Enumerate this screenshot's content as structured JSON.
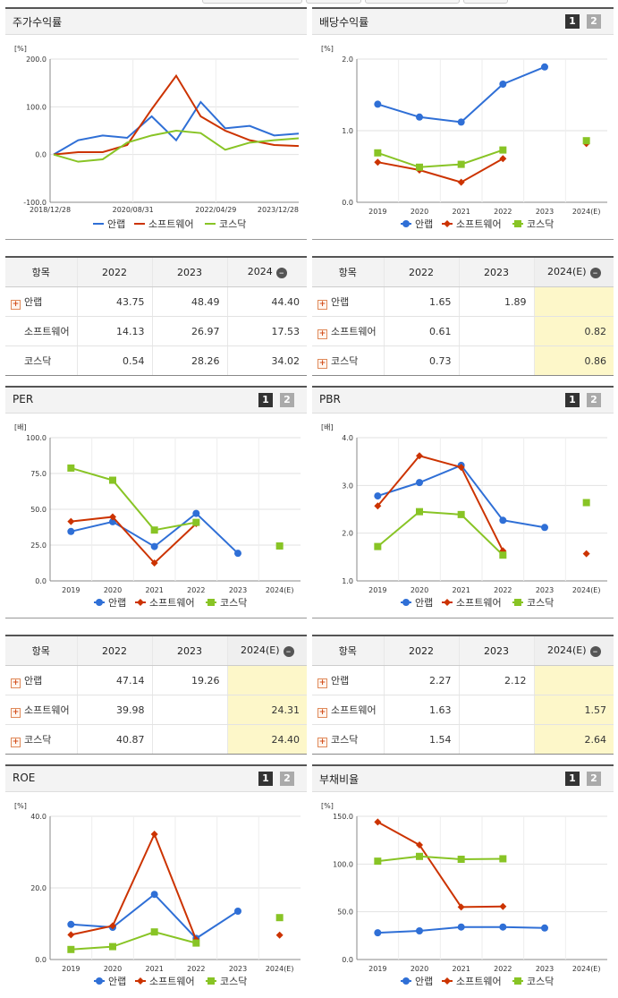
{
  "colors": {
    "ahnlab": "#2f6fd6",
    "software": "#cc3300",
    "kosdaq": "#88c425"
  },
  "toggle": {
    "one": "1",
    "two": "2"
  },
  "legend": [
    "안랩",
    "소프트웨어",
    "코스닥"
  ],
  "stock_panel": {
    "title": "주가수익률",
    "unit": "[%]"
  },
  "dividend_panel": {
    "title": "배당수익률",
    "unit": "[%]"
  },
  "per_panel": {
    "title": "PER",
    "unit": "[배]"
  },
  "pbr_panel": {
    "title": "PBR",
    "unit": "[배]"
  },
  "roe_panel": {
    "title": "ROE",
    "unit": "[%]"
  },
  "debt_panel": {
    "title": "부채비율",
    "unit": "[%]"
  },
  "chart_data": [
    {
      "id": "stock",
      "type": "line",
      "title": "주가수익률",
      "ylabel": "[%]",
      "ylim": [
        -100,
        200
      ],
      "yticks": [
        "-100.0",
        "0.0",
        "100.0",
        "200.0"
      ],
      "xticks": [
        "2018/12/28",
        "2020/08/31",
        "2022/04/29",
        "2023/12/28"
      ],
      "x": [
        "2018/12",
        "2019/06",
        "2019/12",
        "2020/06",
        "2020/12",
        "2021/06",
        "2021/12",
        "2022/06",
        "2022/12",
        "2023/06",
        "2023/12"
      ],
      "series": [
        {
          "name": "안랩",
          "values": [
            0,
            30,
            40,
            35,
            80,
            30,
            110,
            55,
            60,
            40,
            44
          ]
        },
        {
          "name": "소프트웨어",
          "values": [
            0,
            5,
            5,
            20,
            95,
            165,
            80,
            50,
            30,
            20,
            18
          ]
        },
        {
          "name": "코스닥",
          "values": [
            0,
            -15,
            -10,
            25,
            40,
            50,
            45,
            10,
            25,
            30,
            34
          ]
        }
      ]
    },
    {
      "id": "dividend",
      "type": "line",
      "title": "배당수익률",
      "ylabel": "[%]",
      "ylim": [
        0,
        2
      ],
      "yticks": [
        "0.0",
        "1.0",
        "2.0"
      ],
      "categories": [
        "2019",
        "2020",
        "2021",
        "2022",
        "2023",
        "2024(E)"
      ],
      "series": [
        {
          "name": "안랩",
          "values": [
            1.37,
            1.19,
            1.12,
            1.65,
            1.89,
            null
          ]
        },
        {
          "name": "소프트웨어",
          "values": [
            0.56,
            0.45,
            0.28,
            0.61,
            null,
            0.82
          ]
        },
        {
          "name": "코스닥",
          "values": [
            0.69,
            0.49,
            0.53,
            0.73,
            null,
            0.86
          ]
        }
      ]
    },
    {
      "id": "per",
      "type": "line",
      "title": "PER",
      "ylabel": "[배]",
      "ylim": [
        0,
        100
      ],
      "yticks": [
        "0.0",
        "25.0",
        "50.0",
        "75.0",
        "100.0"
      ],
      "categories": [
        "2019",
        "2020",
        "2021",
        "2022",
        "2023",
        "2024(E)"
      ],
      "series": [
        {
          "name": "안랩",
          "values": [
            34.5,
            41.3,
            24,
            47.14,
            19.26,
            null
          ]
        },
        {
          "name": "소프트웨어",
          "values": [
            41.5,
            44.7,
            12.5,
            39.98,
            null,
            24.31
          ]
        },
        {
          "name": "코스닥",
          "values": [
            78.8,
            70.3,
            35.5,
            40.87,
            null,
            24.4
          ]
        }
      ]
    },
    {
      "id": "pbr",
      "type": "line",
      "title": "PBR",
      "ylabel": "[배]",
      "ylim": [
        1,
        4
      ],
      "yticks": [
        "1.0",
        "2.0",
        "3.0",
        "4.0"
      ],
      "categories": [
        "2019",
        "2020",
        "2021",
        "2022",
        "2023",
        "2024(E)"
      ],
      "series": [
        {
          "name": "안랩",
          "values": [
            2.78,
            3.06,
            3.42,
            2.27,
            2.12,
            null
          ]
        },
        {
          "name": "소프트웨어",
          "values": [
            2.57,
            3.62,
            3.38,
            1.63,
            null,
            1.57
          ]
        },
        {
          "name": "코스닥",
          "values": [
            1.72,
            2.45,
            2.39,
            1.54,
            null,
            2.64
          ]
        }
      ]
    },
    {
      "id": "roe",
      "type": "line",
      "title": "ROE",
      "ylabel": "[%]",
      "ylim": [
        0,
        40
      ],
      "yticks": [
        "0.0",
        "20.0",
        "40.0"
      ],
      "categories": [
        "2019",
        "2020",
        "2021",
        "2022",
        "2023",
        "2024(E)"
      ],
      "series": [
        {
          "name": "안랩",
          "values": [
            9.8,
            9.0,
            18.2,
            5.9,
            13.5,
            null
          ]
        },
        {
          "name": "소프트웨어",
          "values": [
            6.9,
            9.4,
            35.0,
            5.5,
            null,
            6.8
          ]
        },
        {
          "name": "코스닥",
          "values": [
            2.8,
            3.6,
            7.7,
            4.6,
            null,
            11.7
          ]
        }
      ]
    },
    {
      "id": "debt",
      "type": "line",
      "title": "부채비율",
      "ylabel": "[%]",
      "ylim": [
        0,
        150
      ],
      "yticks": [
        "0.0",
        "50.0",
        "100.0",
        "150.0"
      ],
      "categories": [
        "2019",
        "2020",
        "2021",
        "2022",
        "2023",
        "2024(E)"
      ],
      "series": [
        {
          "name": "안랩",
          "values": [
            28,
            30,
            34,
            34,
            33,
            null
          ]
        },
        {
          "name": "소프트웨어",
          "values": [
            144,
            120,
            55,
            55.5,
            null,
            null
          ]
        },
        {
          "name": "코스닥",
          "values": [
            103,
            108,
            105,
            105.5,
            null,
            null
          ]
        }
      ]
    }
  ],
  "tables": {
    "stock": {
      "headers": [
        "항목",
        "2022",
        "2023",
        "2024"
      ],
      "rows": [
        {
          "name": "안랩",
          "plus": true,
          "values": [
            "43.75",
            "48.49",
            "44.40"
          ]
        },
        {
          "name": "소프트웨어",
          "plus": false,
          "values": [
            "14.13",
            "26.97",
            "17.53"
          ]
        },
        {
          "name": "코스닥",
          "plus": false,
          "values": [
            "0.54",
            "28.26",
            "34.02"
          ]
        }
      ]
    },
    "dividend": {
      "headers": [
        "항목",
        "2022",
        "2023",
        "2024(E)"
      ],
      "rows": [
        {
          "name": "안랩",
          "plus": true,
          "values": [
            "1.65",
            "1.89",
            ""
          ]
        },
        {
          "name": "소프트웨어",
          "plus": true,
          "values": [
            "0.61",
            "",
            "0.82"
          ]
        },
        {
          "name": "코스닥",
          "plus": true,
          "values": [
            "0.73",
            "",
            "0.86"
          ]
        }
      ]
    },
    "per": {
      "headers": [
        "항목",
        "2022",
        "2023",
        "2024(E)"
      ],
      "rows": [
        {
          "name": "안랩",
          "plus": true,
          "values": [
            "47.14",
            "19.26",
            ""
          ]
        },
        {
          "name": "소프트웨어",
          "plus": true,
          "values": [
            "39.98",
            "",
            "24.31"
          ]
        },
        {
          "name": "코스닥",
          "plus": true,
          "values": [
            "40.87",
            "",
            "24.40"
          ]
        }
      ]
    },
    "pbr": {
      "headers": [
        "항목",
        "2022",
        "2023",
        "2024(E)"
      ],
      "rows": [
        {
          "name": "안랩",
          "plus": true,
          "values": [
            "2.27",
            "2.12",
            ""
          ]
        },
        {
          "name": "소프트웨어",
          "plus": true,
          "values": [
            "1.63",
            "",
            "1.57"
          ]
        },
        {
          "name": "코스닥",
          "plus": true,
          "values": [
            "1.54",
            "",
            "2.64"
          ]
        }
      ]
    }
  }
}
